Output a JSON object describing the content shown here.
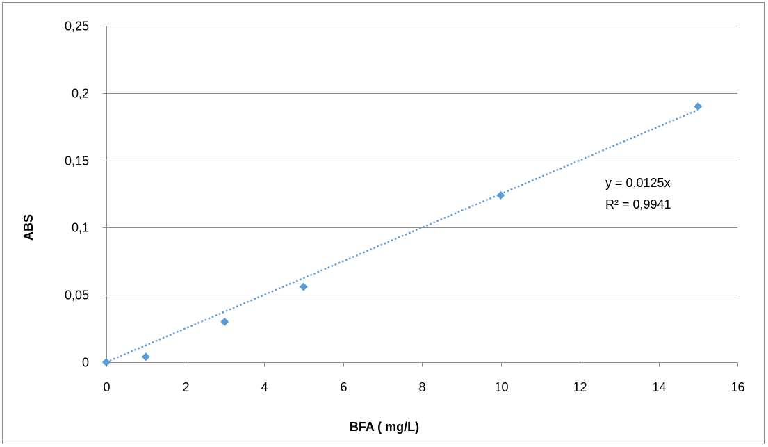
{
  "chart_data": {
    "type": "scatter",
    "title": "",
    "xlabel": "BFA ( mg/L)",
    "ylabel": "ABS",
    "xlim": [
      0,
      16
    ],
    "ylim": [
      0,
      0.25
    ],
    "x_ticks": [
      0,
      2,
      4,
      6,
      8,
      10,
      12,
      14,
      16
    ],
    "y_ticks": [
      0,
      0.05,
      0.1,
      0.15,
      0.2,
      0.25
    ],
    "x_tick_labels": [
      "0",
      "2",
      "4",
      "6",
      "8",
      "10",
      "12",
      "14",
      "16"
    ],
    "y_tick_labels": [
      "0",
      "0,05",
      "0,1",
      "0,15",
      "0,2",
      "0,25"
    ],
    "grid": "horizontal",
    "legend": "none",
    "series": [
      {
        "color": "#5b9bd5",
        "marker": "diamond",
        "points": [
          {
            "x": 0,
            "y": 0
          },
          {
            "x": 1,
            "y": 0.004
          },
          {
            "x": 3,
            "y": 0.03
          },
          {
            "x": 5,
            "y": 0.056
          },
          {
            "x": 10,
            "y": 0.124
          },
          {
            "x": 15,
            "y": 0.19
          }
        ]
      }
    ],
    "trendline": {
      "type": "linear",
      "slope": 0.0125,
      "intercept": 0,
      "x_range": [
        0,
        15
      ],
      "style": "dotted",
      "color": "#5b9bd5",
      "equation": "y = 0,0125x",
      "r_squared": "R² = 0,9941"
    }
  }
}
